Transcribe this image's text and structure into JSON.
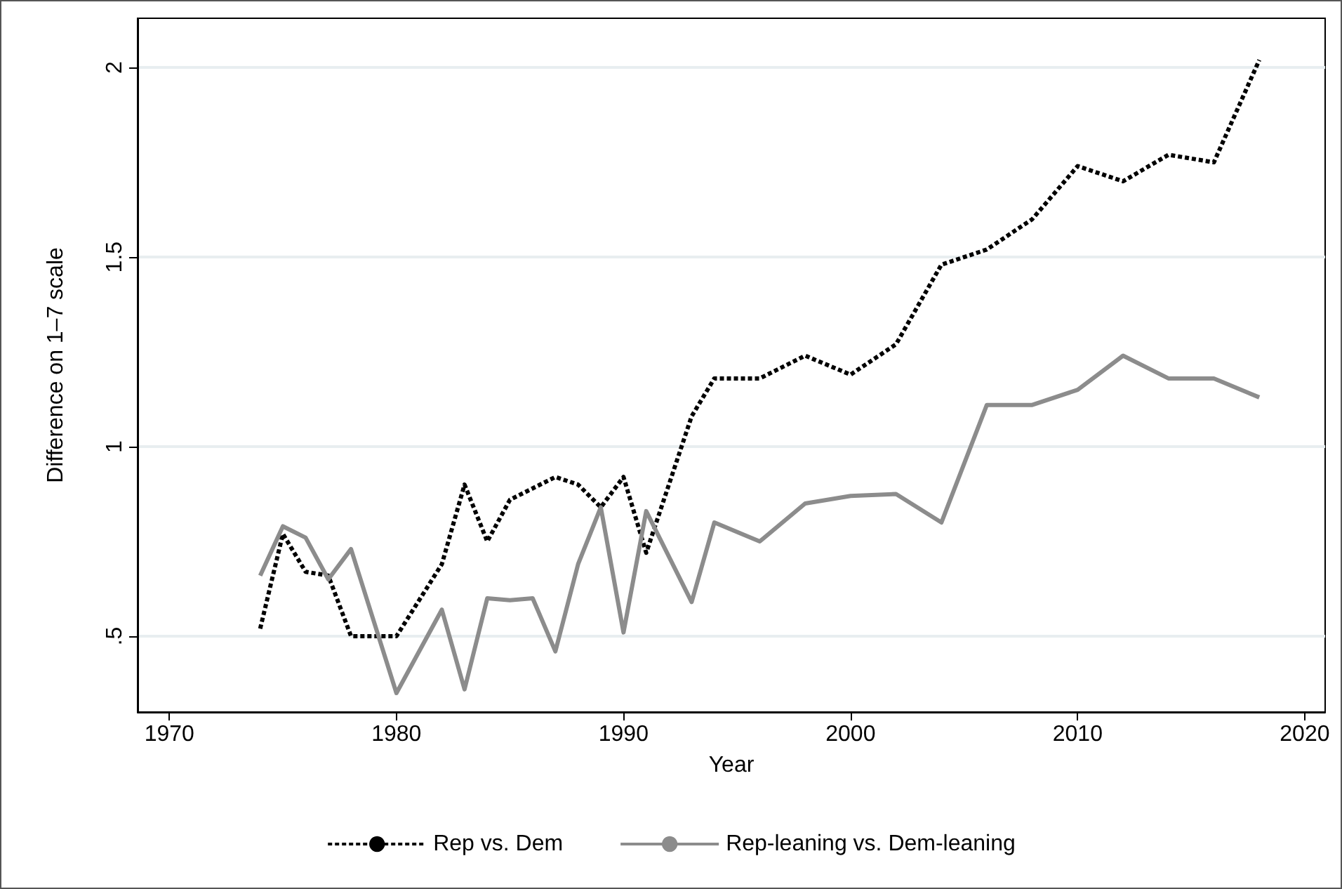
{
  "chart_data": {
    "type": "line",
    "xlabel": "Year",
    "ylabel": "Difference on 1–7 scale",
    "xlim": [
      1968.6,
      2020.9
    ],
    "xticks": [
      1970,
      1980,
      1990,
      2000,
      2010,
      2020
    ],
    "ylim": [
      0.3,
      2.13
    ],
    "yticks": [
      {
        "value": 0.5,
        "label": ".5"
      },
      1,
      1.5,
      2
    ],
    "grid": "y",
    "legend": "bottom",
    "marker": "none",
    "series": [
      {
        "name": "Rep vs. Dem",
        "color": "#000000",
        "line_style": "dotted",
        "x": [
          1974,
          1975,
          1976,
          1977,
          1978,
          1980,
          1982,
          1983,
          1984,
          1985,
          1986,
          1987,
          1988,
          1989,
          1990,
          1991,
          1993,
          1994,
          1996,
          1998,
          2000,
          2002,
          2004,
          2006,
          2008,
          2010,
          2012,
          2014,
          2016,
          2018
        ],
        "values": [
          0.52,
          0.77,
          0.67,
          0.66,
          0.5,
          0.5,
          0.69,
          0.9,
          0.75,
          0.86,
          0.89,
          0.92,
          0.9,
          0.84,
          0.92,
          0.72,
          1.08,
          1.18,
          1.18,
          1.24,
          1.19,
          1.27,
          1.48,
          1.52,
          1.6,
          1.74,
          1.7,
          1.77,
          1.75,
          2.02
        ]
      },
      {
        "name": "Rep-leaning vs. Dem-leaning",
        "color": "#8c8c8c",
        "line_style": "solid",
        "x": [
          1974,
          1975,
          1976,
          1977,
          1978,
          1980,
          1982,
          1983,
          1984,
          1985,
          1986,
          1987,
          1988,
          1989,
          1990,
          1991,
          1993,
          1994,
          1996,
          1998,
          2000,
          2002,
          2004,
          2006,
          2008,
          2010,
          2012,
          2014,
          2016,
          2018
        ],
        "values": [
          0.66,
          0.79,
          0.76,
          0.65,
          0.73,
          0.35,
          0.57,
          0.36,
          0.6,
          0.595,
          0.6,
          0.46,
          0.69,
          0.84,
          0.51,
          0.83,
          0.59,
          0.8,
          0.75,
          0.85,
          0.87,
          0.875,
          0.8,
          1.11,
          1.11,
          1.15,
          1.24,
          1.18,
          1.18,
          1.13
        ]
      }
    ]
  }
}
